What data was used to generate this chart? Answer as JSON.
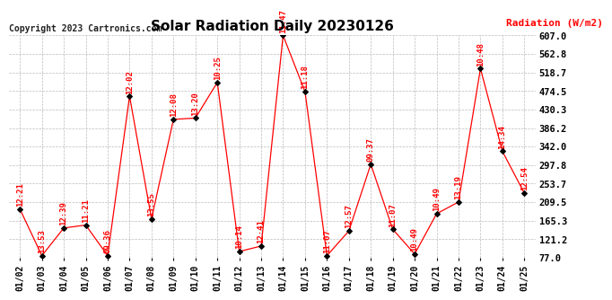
{
  "title": "Solar Radiation Daily 20230126",
  "copyright": "Copyright 2023 Cartronics.com",
  "ylabel": "Radiation (W/m2)",
  "dates": [
    "01/02",
    "01/03",
    "01/04",
    "01/05",
    "01/06",
    "01/07",
    "01/08",
    "01/09",
    "01/10",
    "01/11",
    "01/12",
    "01/13",
    "01/14",
    "01/15",
    "01/16",
    "01/17",
    "01/18",
    "01/19",
    "01/20",
    "01/21",
    "01/22",
    "01/23",
    "01/24",
    "01/25"
  ],
  "values": [
    193,
    82,
    148,
    155,
    82,
    462,
    170,
    407,
    410,
    495,
    92,
    105,
    607,
    473,
    82,
    141,
    300,
    145,
    86,
    182,
    210,
    528,
    331,
    231
  ],
  "labels": [
    "12:21",
    "13:53",
    "12:39",
    "11:21",
    "09:36",
    "12:02",
    "13:55",
    "12:08",
    "13:20",
    "10:25",
    "10:14",
    "12:41",
    "11:47",
    "11:18",
    "11:07",
    "12:57",
    "09:37",
    "11:07",
    "10:49",
    "10:49",
    "13:19",
    "10:48",
    "14:34",
    "12:54"
  ],
  "ylim_min": 77.0,
  "ylim_max": 607.0,
  "yticks": [
    77.0,
    121.2,
    165.3,
    209.5,
    253.7,
    297.8,
    342.0,
    386.2,
    430.3,
    474.5,
    518.7,
    562.8,
    607.0
  ],
  "line_color": "#ff0000",
  "marker_color": "#000000",
  "label_color": "#ff0000",
  "grid_color": "#bbbbbb",
  "title_fontsize": 11,
  "point_label_fontsize": 6.5,
  "copyright_fontsize": 7,
  "ylabel_fontsize": 8,
  "ytick_fontsize": 7.5,
  "xtick_fontsize": 7,
  "background_color": "#ffffff"
}
